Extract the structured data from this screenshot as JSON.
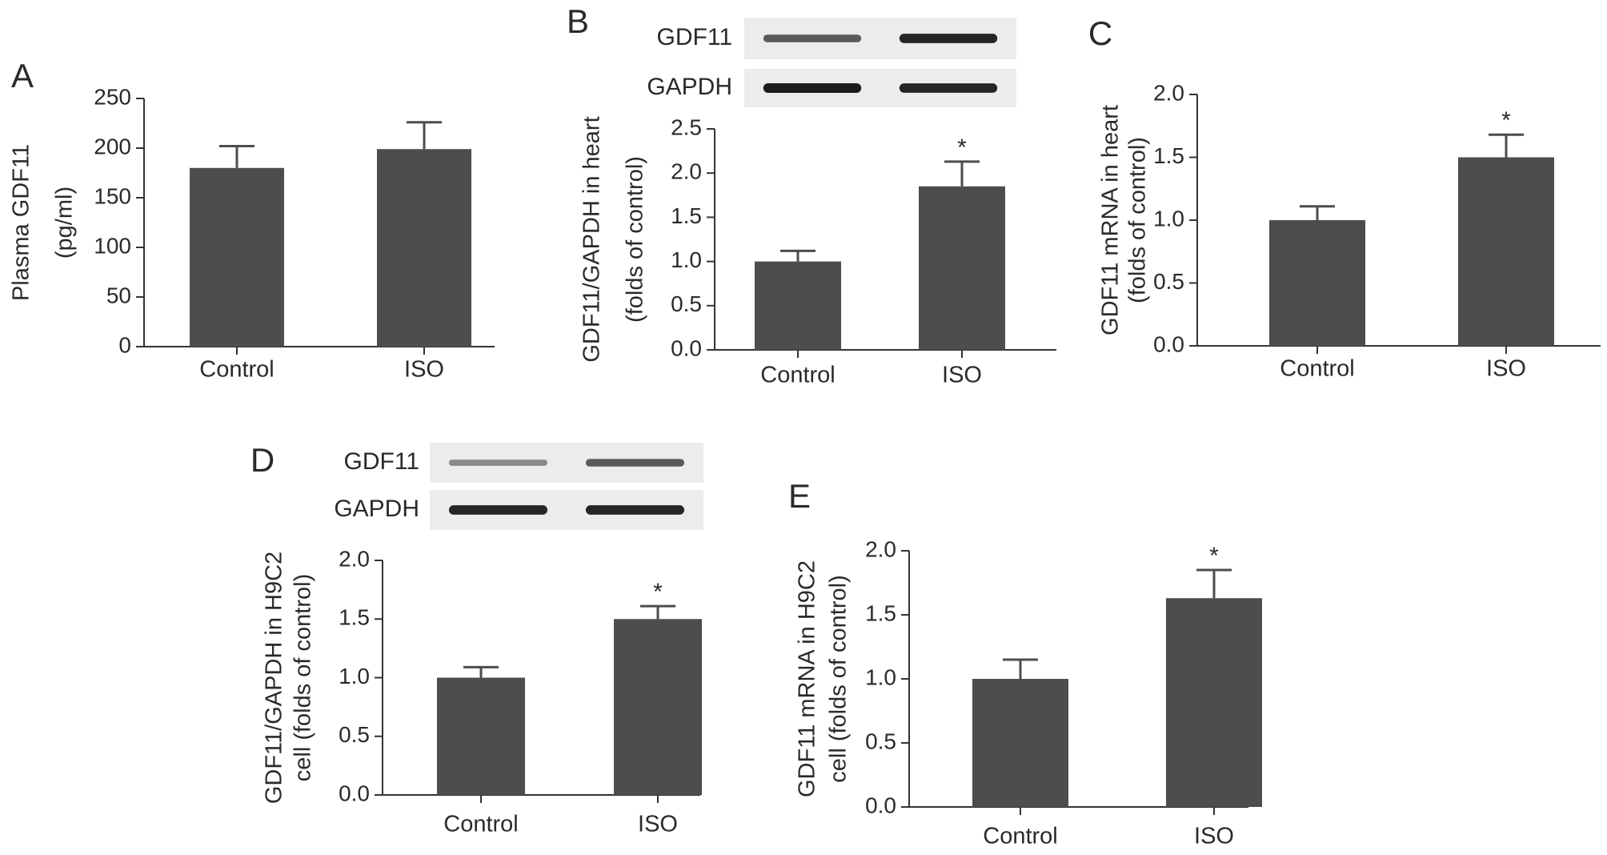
{
  "colors": {
    "bar": "#4d4d4d",
    "axis": "#333333",
    "text": "#2a2a2a",
    "blot_bg": "#ececec",
    "blot_band": "#1c1c1c"
  },
  "panels": [
    {
      "id": "A",
      "label": "A",
      "has_blot": false
    },
    {
      "id": "B",
      "label": "B",
      "has_blot": true,
      "blot_rows": [
        "GDF11",
        "GAPDH"
      ],
      "blot_intensity": [
        [
          0.6,
          0.95
        ],
        [
          1.0,
          0.95
        ]
      ]
    },
    {
      "id": "C",
      "label": "C",
      "has_blot": false
    },
    {
      "id": "D",
      "label": "D",
      "has_blot": true,
      "blot_rows": [
        "GDF11",
        "GAPDH"
      ],
      "blot_intensity": [
        [
          0.3,
          0.6
        ],
        [
          0.95,
          0.95
        ]
      ]
    },
    {
      "id": "E",
      "label": "E",
      "has_blot": false
    }
  ],
  "chart_data": [
    {
      "type": "bar",
      "title": "",
      "categories": [
        "Control",
        "ISO"
      ],
      "values": [
        180,
        199
      ],
      "error": [
        22,
        27
      ],
      "significance": [
        "",
        ""
      ],
      "ylim": [
        0,
        250
      ],
      "yticks": [
        "0",
        "50",
        "100",
        "150",
        "200",
        "250"
      ],
      "ylabel": [
        "Plasma GDF11",
        "(pg/ml)"
      ],
      "xlabel": ""
    },
    {
      "type": "bar",
      "title": "",
      "categories": [
        "Control",
        "ISO"
      ],
      "values": [
        1.0,
        1.85
      ],
      "error": [
        0.12,
        0.28
      ],
      "significance": [
        "",
        "*"
      ],
      "ylim": [
        0,
        2.5
      ],
      "yticks": [
        "0.0",
        "0.5",
        "1.0",
        "1.5",
        "2.0",
        "2.5"
      ],
      "ylabel": [
        "GDF11/GAPDH in heart",
        "(folds of control)"
      ],
      "xlabel": ""
    },
    {
      "type": "bar",
      "title": "",
      "categories": [
        "Control",
        "ISO"
      ],
      "values": [
        1.0,
        1.5
      ],
      "error": [
        0.11,
        0.18
      ],
      "significance": [
        "",
        "*"
      ],
      "ylim": [
        0,
        2.0
      ],
      "yticks": [
        "0.0",
        "0.5",
        "1.0",
        "1.5",
        "2.0"
      ],
      "ylabel": [
        "GDF11 mRNA in heart",
        "(folds of control)"
      ],
      "xlabel": ""
    },
    {
      "type": "bar",
      "title": "",
      "categories": [
        "Control",
        "ISO"
      ],
      "values": [
        1.0,
        1.5
      ],
      "error": [
        0.09,
        0.11
      ],
      "significance": [
        "",
        "*"
      ],
      "ylim": [
        0,
        2.0
      ],
      "yticks": [
        "0.0",
        "0.5",
        "1.0",
        "1.5",
        "2.0"
      ],
      "ylabel": [
        "GDF11/GAPDH in H9C2",
        "cell (folds of control)"
      ],
      "xlabel": ""
    },
    {
      "type": "bar",
      "title": "",
      "categories": [
        "Control",
        "ISO"
      ],
      "values": [
        1.0,
        1.63
      ],
      "error": [
        0.15,
        0.22
      ],
      "significance": [
        "",
        "*"
      ],
      "ylim": [
        0,
        2.0
      ],
      "yticks": [
        "0.0",
        "0.5",
        "1.0",
        "1.5",
        "2.0"
      ],
      "ylabel": [
        "GDF11 mRNA in H9C2",
        "cell (folds of control)"
      ],
      "xlabel": ""
    }
  ]
}
